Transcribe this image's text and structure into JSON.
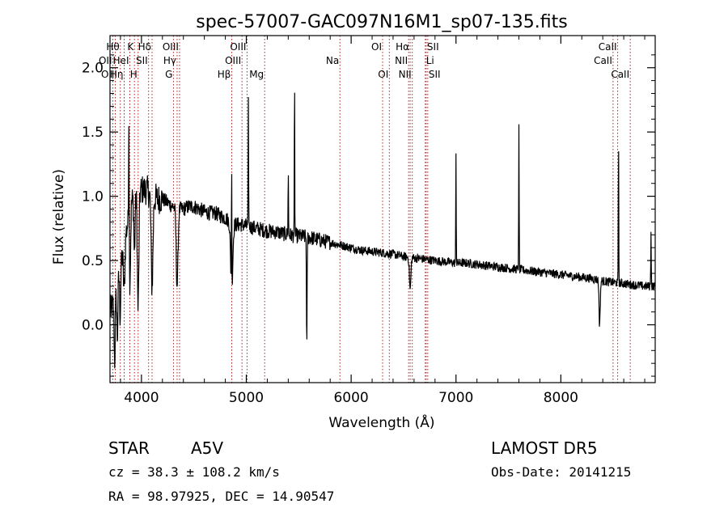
{
  "chart_data": {
    "type": "line",
    "title": "spec-57007-GAC097N16M1_sp07-135.fits",
    "xlabel": "Wavelength (Å)",
    "ylabel": "Flux (relative)",
    "xlim": [
      3700,
      8900
    ],
    "ylim": [
      -0.45,
      2.25
    ],
    "x_ticks": [
      4000,
      5000,
      6000,
      7000,
      8000
    ],
    "y_ticks": [
      0.0,
      0.5,
      1.0,
      1.5,
      2.0
    ],
    "x_tick_labels": [
      "4000",
      "5000",
      "6000",
      "7000",
      "8000"
    ],
    "y_tick_labels": [
      "0.0",
      "0.5",
      "1.0",
      "1.5",
      "2.0"
    ],
    "line_color": "#000000",
    "marker_color": "#b22222",
    "grid": false,
    "legend": "none",
    "spectrum_anchors": {
      "x": [
        3700,
        3730,
        3760,
        3790,
        3820,
        3850,
        3880,
        3900,
        3930,
        3960,
        4000,
        4050,
        4100,
        4150,
        4200,
        4250,
        4300,
        4350,
        4400,
        4450,
        4500,
        4550,
        4600,
        4650,
        4700,
        4750,
        4800,
        4850,
        4900,
        4950,
        5000,
        5050,
        5100,
        5150,
        5200,
        5300,
        5400,
        5500,
        5600,
        5700,
        5800,
        5900,
        6000,
        6100,
        6200,
        6300,
        6400,
        6500,
        6600,
        6700,
        6800,
        6900,
        7000,
        7100,
        7200,
        7300,
        7400,
        7500,
        7600,
        7700,
        7800,
        7900,
        8000,
        8100,
        8200,
        8300,
        8400,
        8500,
        8600,
        8700,
        8800,
        8900
      ],
      "y": [
        0.1,
        0.15,
        0.3,
        0.45,
        0.55,
        0.7,
        0.85,
        0.95,
        1.0,
        1.02,
        1.05,
        1.05,
        1.0,
        0.98,
        0.98,
        0.95,
        0.92,
        0.9,
        0.9,
        0.92,
        0.92,
        0.9,
        0.88,
        0.87,
        0.87,
        0.85,
        0.83,
        0.8,
        0.78,
        0.78,
        0.77,
        0.76,
        0.75,
        0.74,
        0.73,
        0.72,
        0.7,
        0.69,
        0.68,
        0.66,
        0.64,
        0.62,
        0.6,
        0.58,
        0.57,
        0.56,
        0.55,
        0.53,
        0.52,
        0.51,
        0.5,
        0.49,
        0.48,
        0.48,
        0.47,
        0.46,
        0.45,
        0.44,
        0.43,
        0.42,
        0.41,
        0.4,
        0.39,
        0.38,
        0.37,
        0.36,
        0.34,
        0.33,
        0.32,
        0.31,
        0.3,
        0.3
      ]
    },
    "spectrum_features": [
      {
        "x": 3745,
        "depth": -0.5,
        "width": 8
      },
      {
        "x": 3770,
        "depth": -0.45,
        "width": 8
      },
      {
        "x": 3797,
        "depth": -0.4,
        "width": 8
      },
      {
        "x": 3835,
        "depth": -0.35,
        "width": 10
      },
      {
        "x": 3889,
        "depth": -0.55,
        "width": 10
      },
      {
        "x": 3933,
        "depth": -0.45,
        "width": 8
      },
      {
        "x": 3968,
        "depth": -0.9,
        "width": 10
      },
      {
        "x": 4101,
        "depth": -0.7,
        "width": 12
      },
      {
        "x": 4340,
        "depth": -0.6,
        "width": 12
      },
      {
        "x": 4861,
        "depth": -0.55,
        "width": 14
      },
      {
        "x": 5577,
        "depth": -0.9,
        "width": 4
      },
      {
        "x": 6563,
        "depth": -0.25,
        "width": 10
      },
      {
        "x": 8370,
        "depth": -0.35,
        "width": 8
      },
      {
        "x": 3880,
        "depth": 1.0,
        "width": 4
      },
      {
        "x": 4860,
        "depth": 1.0,
        "width": 3
      },
      {
        "x": 5020,
        "depth": 0.95,
        "width": 3
      },
      {
        "x": 5400,
        "depth": 0.5,
        "width": 3
      },
      {
        "x": 5460,
        "depth": 1.2,
        "width": 3
      },
      {
        "x": 7000,
        "depth": 0.85,
        "width": 3
      },
      {
        "x": 7600,
        "depth": 1.1,
        "width": 3
      },
      {
        "x": 8550,
        "depth": 1.15,
        "width": 3
      },
      {
        "x": 8860,
        "depth": 0.45,
        "width": 3
      }
    ],
    "spectral_lines": [
      {
        "wavelength": 3727,
        "label": "OII",
        "row": 1,
        "side": "left"
      },
      {
        "wavelength": 3750,
        "label": "OII",
        "row": 2,
        "side": "left"
      },
      {
        "wavelength": 3798,
        "label": "Hθ",
        "row": 0,
        "side": "left"
      },
      {
        "wavelength": 3835,
        "label": "Hη",
        "row": 2,
        "side": "left"
      },
      {
        "wavelength": 3889,
        "label": "HeI",
        "row": 1,
        "side": "left"
      },
      {
        "wavelength": 3933,
        "label": "K",
        "row": 0,
        "side": "left"
      },
      {
        "wavelength": 3968,
        "label": "H",
        "row": 2,
        "side": "left"
      },
      {
        "wavelength": 4068,
        "label": "SII",
        "row": 1,
        "side": "left"
      },
      {
        "wavelength": 4101,
        "label": "Hδ",
        "row": 0,
        "side": "left"
      },
      {
        "wavelength": 4305,
        "label": "G",
        "row": 2,
        "side": "left"
      },
      {
        "wavelength": 4340,
        "label": "Hγ",
        "row": 1,
        "side": "left"
      },
      {
        "wavelength": 4363,
        "label": "OIII",
        "row": 0,
        "side": "left"
      },
      {
        "wavelength": 4861,
        "label": "Hβ",
        "row": 2,
        "side": "left"
      },
      {
        "wavelength": 4959,
        "label": "OIII",
        "row": 1,
        "side": "left"
      },
      {
        "wavelength": 5007,
        "label": "OIII",
        "row": 0,
        "side": "left"
      },
      {
        "wavelength": 5175,
        "label": "Mg",
        "row": 2,
        "side": "left"
      },
      {
        "wavelength": 5893,
        "label": "Na",
        "row": 1,
        "side": "left"
      },
      {
        "wavelength": 6300,
        "label": "OI",
        "row": 0,
        "side": "left"
      },
      {
        "wavelength": 6364,
        "label": "OI",
        "row": 2,
        "side": "left"
      },
      {
        "wavelength": 6548,
        "label": "NII",
        "row": 1,
        "side": "left"
      },
      {
        "wavelength": 6563,
        "label": "Hα",
        "row": 0,
        "side": "left"
      },
      {
        "wavelength": 6583,
        "label": "NII",
        "row": 2,
        "side": "left"
      },
      {
        "wavelength": 6707,
        "label": "Li",
        "row": 1,
        "side": "right"
      },
      {
        "wavelength": 6716,
        "label": "SII",
        "row": 0,
        "side": "right"
      },
      {
        "wavelength": 6731,
        "label": "SII",
        "row": 2,
        "side": "right"
      },
      {
        "wavelength": 8498,
        "label": "CaII",
        "row": 1,
        "side": "left"
      },
      {
        "wavelength": 8542,
        "label": "CaII",
        "row": 0,
        "side": "left"
      },
      {
        "wavelength": 8662,
        "label": "CaII",
        "row": 2,
        "side": "left"
      }
    ]
  },
  "info": {
    "object_class": "STAR",
    "subclass": "A5V",
    "survey": "LAMOST DR5",
    "redshift": "cz = 38.3 ± 108.2 km/s",
    "obs_date": "Obs-Date: 20141215",
    "coordinates": "RA =  98.97925, DEC =  14.90547"
  }
}
